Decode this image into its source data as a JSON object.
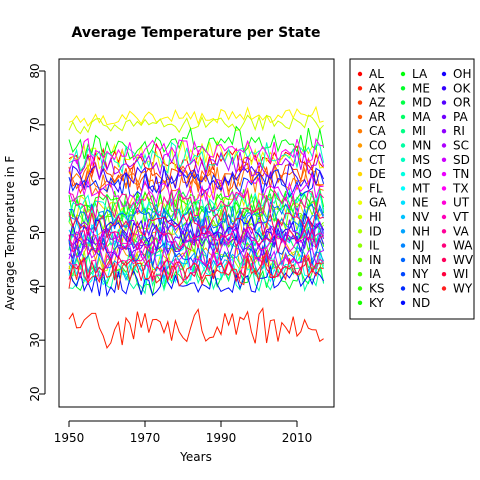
{
  "chart_data": {
    "type": "line",
    "title": "Average Temperature per State",
    "xlabel": "Years",
    "ylabel": "Average Temperature in F",
    "xlim": [
      1950,
      2017
    ],
    "ylim": [
      20,
      80
    ],
    "x_ticks": [
      "1950",
      "1970",
      "1990",
      "2010"
    ],
    "y_ticks": [
      "20",
      "30",
      "40",
      "50",
      "60",
      "70",
      "80"
    ],
    "grid": false,
    "legend_position": "right",
    "series": [
      {
        "name": "AL",
        "color": "#FF0000",
        "mean": 63.5
      },
      {
        "name": "AK",
        "color": "#FF1F00",
        "mean": 32.5
      },
      {
        "name": "AZ",
        "color": "#FF3D00",
        "mean": 60.5
      },
      {
        "name": "AR",
        "color": "#FF5C00",
        "mean": 60.5
      },
      {
        "name": "CA",
        "color": "#FF7A00",
        "mean": 59.5
      },
      {
        "name": "CO",
        "color": "#FF9900",
        "mean": 45.5
      },
      {
        "name": "CT",
        "color": "#FFB800",
        "mean": 49.5
      },
      {
        "name": "DE",
        "color": "#FFD600",
        "mean": 55.5
      },
      {
        "name": "FL",
        "color": "#FFF500",
        "mean": 71.5
      },
      {
        "name": "GA",
        "color": "#EBFF00",
        "mean": 64.0
      },
      {
        "name": "HI",
        "color": "#CCFF00",
        "mean": 70.0
      },
      {
        "name": "ID",
        "color": "#ADFF00",
        "mean": 44.5
      },
      {
        "name": "IL",
        "color": "#8FFF00",
        "mean": 52.0
      },
      {
        "name": "IN",
        "color": "#70FF00",
        "mean": 52.5
      },
      {
        "name": "IA",
        "color": "#52FF00",
        "mean": 48.0
      },
      {
        "name": "KS",
        "color": "#33FF00",
        "mean": 55.0
      },
      {
        "name": "KY",
        "color": "#14FF00",
        "mean": 55.5
      },
      {
        "name": "LA",
        "color": "#00FF0A",
        "mean": 66.5
      },
      {
        "name": "ME",
        "color": "#00FF29",
        "mean": 41.5
      },
      {
        "name": "MD",
        "color": "#00FF47",
        "mean": 54.5
      },
      {
        "name": "MA",
        "color": "#00FF66",
        "mean": 48.5
      },
      {
        "name": "MI",
        "color": "#00FF85",
        "mean": 45.0
      },
      {
        "name": "MN",
        "color": "#00FFA3",
        "mean": 41.5
      },
      {
        "name": "MS",
        "color": "#00FFC2",
        "mean": 64.0
      },
      {
        "name": "MO",
        "color": "#00FFE0",
        "mean": 55.0
      },
      {
        "name": "MT",
        "color": "#00FFFF",
        "mean": 43.0
      },
      {
        "name": "NE",
        "color": "#00E0FF",
        "mean": 49.0
      },
      {
        "name": "NV",
        "color": "#00C2FF",
        "mean": 50.0
      },
      {
        "name": "NH",
        "color": "#00A3FF",
        "mean": 44.5
      },
      {
        "name": "NJ",
        "color": "#0085FF",
        "mean": 52.5
      },
      {
        "name": "NM",
        "color": "#0066FF",
        "mean": 53.0
      },
      {
        "name": "NY",
        "color": "#0047FF",
        "mean": 46.5
      },
      {
        "name": "NC",
        "color": "#0029FF",
        "mean": 59.0
      },
      {
        "name": "ND",
        "color": "#000AFF",
        "mean": 41.0
      },
      {
        "name": "OH",
        "color": "#1400FF",
        "mean": 50.5
      },
      {
        "name": "OK",
        "color": "#3300FF",
        "mean": 60.0
      },
      {
        "name": "OR",
        "color": "#5200FF",
        "mean": 48.0
      },
      {
        "name": "PA",
        "color": "#7000FF",
        "mean": 49.0
      },
      {
        "name": "RI",
        "color": "#8F00FF",
        "mean": 50.0
      },
      {
        "name": "SC",
        "color": "#AD00FF",
        "mean": 62.5
      },
      {
        "name": "SD",
        "color": "#CC00FF",
        "mean": 45.5
      },
      {
        "name": "TN",
        "color": "#EB00FF",
        "mean": 57.5
      },
      {
        "name": "TX",
        "color": "#FF00F5",
        "mean": 65.0
      },
      {
        "name": "UT",
        "color": "#FF00D6",
        "mean": 48.5
      },
      {
        "name": "VT",
        "color": "#FF00B8",
        "mean": 43.5
      },
      {
        "name": "VA",
        "color": "#FF0099",
        "mean": 55.5
      },
      {
        "name": "WA",
        "color": "#FF007A",
        "mean": 48.5
      },
      {
        "name": "WV",
        "color": "#FF005C",
        "mean": 52.0
      },
      {
        "name": "WI",
        "color": "#FF003D",
        "mean": 43.5
      },
      {
        "name": "WY",
        "color": "#FF1F1F",
        "mean": 42.5
      }
    ]
  }
}
